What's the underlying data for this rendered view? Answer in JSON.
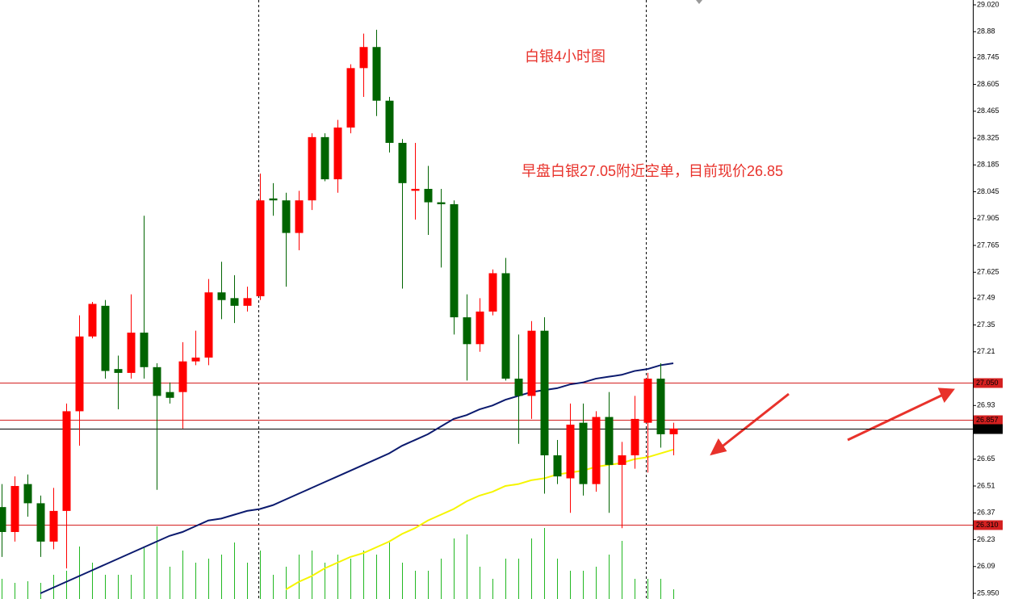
{
  "chart_data": {
    "type": "candlestick",
    "annotations": [
      "白银4小时图",
      "早盘白银27.05附近空单，目前现价26.85"
    ],
    "annotation_color": "#e8322b",
    "up_color": "#ff0000",
    "down_color": "#006400",
    "open": [
      26.4,
      26.27,
      26.52,
      26.42,
      26.22,
      26.38,
      26.9,
      27.29,
      27.45,
      27.12,
      27.1,
      27.31,
      27.13,
      27.0,
      27.0,
      27.16,
      27.18,
      27.52,
      27.49,
      27.45,
      27.5,
      28.01,
      28.0,
      27.83,
      28.0,
      28.33,
      28.11,
      28.38,
      28.69,
      28.8,
      28.52,
      28.3,
      28.05,
      28.06,
      27.99,
      27.98,
      27.39,
      27.25,
      27.42,
      27.62,
      27.07,
      26.98,
      27.32,
      26.67,
      26.55,
      26.84,
      26.52,
      26.87,
      26.62,
      26.67,
      26.84,
      27.07,
      26.78
    ],
    "high": [
      26.52,
      26.56,
      26.57,
      26.46,
      26.5,
      26.94,
      27.4,
      27.47,
      27.48,
      27.19,
      27.51,
      27.92,
      27.15,
      27.05,
      27.26,
      27.32,
      27.59,
      27.68,
      27.61,
      27.55,
      28.14,
      28.09,
      28.04,
      28.05,
      28.35,
      28.35,
      28.42,
      28.71,
      28.87,
      28.89,
      28.54,
      28.32,
      28.3,
      28.18,
      28.06,
      28.0,
      27.51,
      27.49,
      27.64,
      27.7,
      27.3,
      27.37,
      27.39,
      26.75,
      26.94,
      26.94,
      26.9,
      27.0,
      26.74,
      26.98,
      27.1,
      27.15,
      26.84
    ],
    "low": [
      26.14,
      26.22,
      26.35,
      26.14,
      26.18,
      26.08,
      26.72,
      27.28,
      27.07,
      26.91,
      27.07,
      27.07,
      26.49,
      26.94,
      26.81,
      27.14,
      27.14,
      27.38,
      27.36,
      27.42,
      27.48,
      27.92,
      27.55,
      27.74,
      27.95,
      28.1,
      28.04,
      28.35,
      28.54,
      28.44,
      28.25,
      27.54,
      27.9,
      27.82,
      27.65,
      27.3,
      27.06,
      27.21,
      27.4,
      27.06,
      26.73,
      26.86,
      26.47,
      26.52,
      26.37,
      26.46,
      26.48,
      26.37,
      26.29,
      26.6,
      26.58,
      26.71,
      26.67
    ],
    "close": [
      26.27,
      26.51,
      26.42,
      26.22,
      26.38,
      26.9,
      27.29,
      27.46,
      27.11,
      27.1,
      27.31,
      27.13,
      26.98,
      26.97,
      27.16,
      27.18,
      27.52,
      27.48,
      27.45,
      27.49,
      28.0,
      28.0,
      27.83,
      28.0,
      28.33,
      28.11,
      28.38,
      28.69,
      28.8,
      28.52,
      28.3,
      28.09,
      28.06,
      27.99,
      27.98,
      27.39,
      27.25,
      27.42,
      27.62,
      27.07,
      26.98,
      27.32,
      26.67,
      26.56,
      26.83,
      26.52,
      26.87,
      26.62,
      26.67,
      26.86,
      27.07,
      26.78,
      26.81
    ],
    "moving_averages": [
      {
        "color": "#0b1a6e",
        "values": [
          null,
          null,
          null,
          25.95,
          25.98,
          26.01,
          26.04,
          26.07,
          26.1,
          26.13,
          26.16,
          26.19,
          26.22,
          26.25,
          26.27,
          26.3,
          26.33,
          26.34,
          26.36,
          26.38,
          26.39,
          26.41,
          26.44,
          26.47,
          26.5,
          26.53,
          26.56,
          26.59,
          26.62,
          26.65,
          26.68,
          26.72,
          26.75,
          26.78,
          26.82,
          26.86,
          26.88,
          26.91,
          26.93,
          26.96,
          26.98,
          27.0,
          27.01,
          27.02,
          27.04,
          27.05,
          27.07,
          27.08,
          27.09,
          27.11,
          27.12,
          27.14,
          27.15
        ]
      },
      {
        "color": "#f5f500",
        "values": [
          null,
          null,
          null,
          null,
          null,
          null,
          null,
          null,
          null,
          null,
          null,
          null,
          null,
          null,
          null,
          null,
          null,
          null,
          null,
          null,
          null,
          null,
          25.97,
          26.01,
          26.04,
          26.08,
          26.11,
          26.14,
          26.16,
          26.19,
          26.22,
          26.26,
          26.29,
          26.33,
          26.36,
          26.39,
          26.43,
          26.46,
          26.48,
          26.51,
          26.52,
          26.54,
          26.55,
          26.57,
          26.58,
          26.59,
          26.61,
          26.62,
          26.63,
          26.65,
          26.66,
          26.68,
          26.7
        ]
      }
    ],
    "volume": {
      "color": "#22b822",
      "values": [
        25,
        20,
        22,
        20,
        30,
        35,
        65,
        45,
        30,
        30,
        30,
        65,
        90,
        40,
        60,
        45,
        50,
        55,
        70,
        45,
        60,
        30,
        40,
        55,
        60,
        45,
        55,
        50,
        60,
        55,
        70,
        45,
        35,
        35,
        50,
        75,
        80,
        40,
        25,
        50,
        50,
        75,
        88,
        50,
        35,
        35,
        40,
        55,
        72,
        25,
        25,
        25,
        12
      ]
    },
    "ylim": [
      25.95,
      29.02
    ],
    "yticks": [
      {
        "value": 29.02,
        "label": "29.020"
      },
      28.88,
      28.745,
      28.605,
      28.465,
      28.325,
      28.185,
      28.045,
      27.905,
      27.765,
      27.625,
      27.49,
      27.35,
      27.21,
      26.93,
      26.65,
      26.51,
      26.37,
      26.23,
      26.09,
      {
        "value": 25.95,
        "label": "25.950"
      }
    ],
    "price_lines": [
      {
        "value": 27.05,
        "label": "27.050",
        "color": "#d42020"
      },
      {
        "value": 26.857,
        "label": "26.857",
        "color": "#d42020"
      },
      {
        "value": 26.809,
        "label": "26.809",
        "color": "#000000"
      },
      {
        "value": 26.31,
        "label": "26.310",
        "color": "#d42020"
      }
    ]
  }
}
